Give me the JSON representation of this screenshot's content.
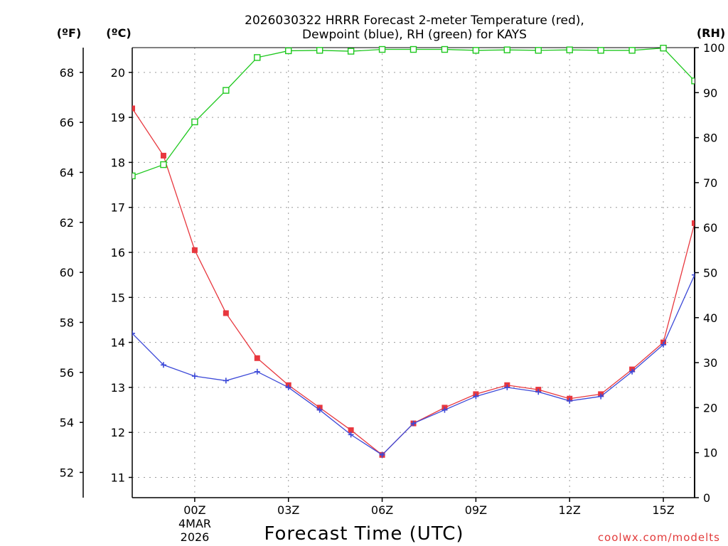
{
  "chart_data": {
    "type": "line",
    "title_line1": "2026030322 HRRR Forecast 2-meter Temperature (red),",
    "title_line2": "Dewpoint (blue), RH (green) for KAYS",
    "unit_f": "(ºF)",
    "unit_c": "(ºC)",
    "unit_rh": "(RH)",
    "xlabel": "Forecast Time (UTC)",
    "credit": "coolwx.com/modelts",
    "date_label_1": "4MAR",
    "date_label_2": "2026",
    "x_range": [
      -2,
      16
    ],
    "celsius_range": [
      10.55,
      20.55
    ],
    "rh_range": [
      0,
      100
    ],
    "fahrenheit_ticks": [
      52,
      54,
      56,
      58,
      60,
      62,
      64,
      66,
      68
    ],
    "celsius_ticks": [
      11,
      12,
      13,
      14,
      15,
      16,
      17,
      18,
      19,
      20
    ],
    "rh_ticks": [
      0,
      10,
      20,
      30,
      40,
      50,
      60,
      70,
      80,
      90,
      100
    ],
    "x_ticks": [
      {
        "hour": 0,
        "label": "00Z"
      },
      {
        "hour": 3,
        "label": "03Z"
      },
      {
        "hour": 6,
        "label": "06Z"
      },
      {
        "hour": 9,
        "label": "09Z"
      },
      {
        "hour": 12,
        "label": "12Z"
      },
      {
        "hour": 15,
        "label": "15Z"
      }
    ],
    "hours": [
      -2,
      -1,
      0,
      1,
      2,
      3,
      4,
      5,
      6,
      7,
      8,
      9,
      10,
      11,
      12,
      13,
      14,
      15,
      16
    ],
    "series": [
      {
        "name": "Temperature",
        "color": "#e8373e",
        "marker": "filled-square",
        "values": [
          19.2,
          18.15,
          16.05,
          14.65,
          13.65,
          13.05,
          12.55,
          12.05,
          11.5,
          12.2,
          12.55,
          12.85,
          13.05,
          12.95,
          12.75,
          12.85,
          13.4,
          14.0,
          16.65
        ]
      },
      {
        "name": "Dewpoint",
        "color": "#3c49d8",
        "marker": "plus",
        "values": [
          14.2,
          13.5,
          13.25,
          13.15,
          13.35,
          13.0,
          12.5,
          11.95,
          11.5,
          12.2,
          12.5,
          12.8,
          13.0,
          12.9,
          12.7,
          12.8,
          13.35,
          13.95,
          15.5
        ]
      },
      {
        "name": "RH",
        "color": "#1ec81e",
        "marker": "open-square",
        "values": [
          71.5,
          74.0,
          83.5,
          90.5,
          97.8,
          99.3,
          99.4,
          99.2,
          99.6,
          99.6,
          99.6,
          99.4,
          99.5,
          99.4,
          99.5,
          99.4,
          99.4,
          99.9,
          92.6
        ]
      }
    ]
  }
}
